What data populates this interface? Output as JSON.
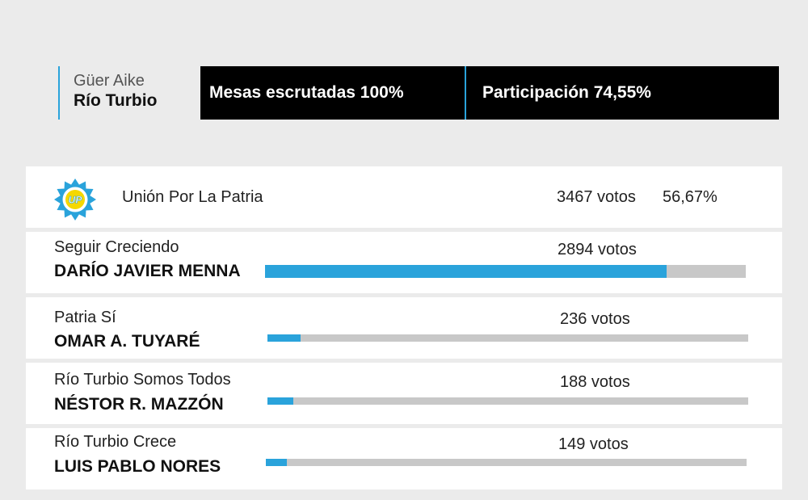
{
  "location": {
    "region": "Güer Aike",
    "city": "Río Turbio"
  },
  "stats": {
    "mesas": "Mesas escrutadas 100%",
    "participacion": "Participación 74,55%"
  },
  "winner": {
    "party": "Unión Por La Patria",
    "votes_label": "3467 votos",
    "pct_label": "56,67%",
    "logo_text": "UP"
  },
  "colors": {
    "accent": "#2aa3db",
    "track": "#c8c8c8",
    "logo_yellow": "#f5d800",
    "header_bg": "#000000"
  },
  "chart_data": {
    "type": "bar",
    "categories": [
      "Seguir Creciendo",
      "Patria Sí",
      "Río Turbio Somos Todos",
      "Río Turbio Crece"
    ],
    "candidates": [
      "DARÍO JAVIER MENNA",
      "OMAR A. TUYARÉ",
      "NÉSTOR R. MAZZÓN",
      "LUIS PABLO NORES"
    ],
    "values": [
      2894,
      236,
      188,
      149
    ],
    "value_labels": [
      "2894 votos",
      "236 votos",
      "188 votos",
      "149 votos"
    ],
    "xlim": [
      0,
      3467
    ]
  }
}
